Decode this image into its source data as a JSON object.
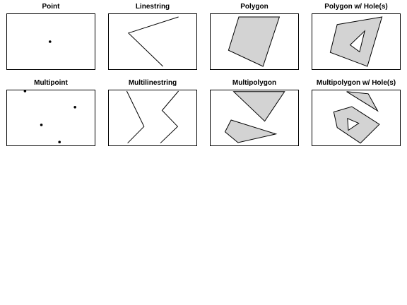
{
  "colors": {
    "fill": "#d3d3d3",
    "stroke": "#000000",
    "frame": "#000000",
    "background": "#ffffff"
  },
  "panels": [
    {
      "title": "Point",
      "kind": "point",
      "geometry": {
        "points": [
          [
            0.49,
            0.5
          ]
        ]
      }
    },
    {
      "title": "Linestring",
      "kind": "linestring",
      "geometry": {
        "lines": [
          [
            [
              0.8,
              0.96
            ],
            [
              0.22,
              0.66
            ],
            [
              0.62,
              0.04
            ]
          ]
        ]
      }
    },
    {
      "title": "Polygon",
      "kind": "polygon",
      "geometry": {
        "polygons": [
          {
            "outer": [
              [
                0.32,
                0.96
              ],
              [
                0.79,
                0.96
              ],
              [
                0.6,
                0.04
              ],
              [
                0.2,
                0.34
              ]
            ],
            "holes": []
          }
        ]
      }
    },
    {
      "title": "Polygon w/ Hole(s)",
      "kind": "polygon",
      "geometry": {
        "polygons": [
          {
            "outer": [
              [
                0.28,
                0.82
              ],
              [
                0.8,
                0.96
              ],
              [
                0.63,
                0.04
              ],
              [
                0.2,
                0.3
              ]
            ],
            "holes": [
              [
                [
                  0.43,
                  0.44
                ],
                [
                  0.6,
                  0.7
                ],
                [
                  0.54,
                  0.31
                ]
              ]
            ]
          }
        ]
      }
    },
    {
      "title": "Multipoint",
      "kind": "point",
      "geometry": {
        "points": [
          [
            0.2,
            1.0
          ],
          [
            0.78,
            0.7
          ],
          [
            0.39,
            0.37
          ],
          [
            0.6,
            0.05
          ]
        ]
      }
    },
    {
      "title": "Multilinestring",
      "kind": "linestring",
      "geometry": {
        "lines": [
          [
            [
              0.2,
              1.0
            ],
            [
              0.4,
              0.34
            ],
            [
              0.21,
              0.03
            ]
          ],
          [
            [
              0.8,
              1.0
            ],
            [
              0.61,
              0.64
            ],
            [
              0.79,
              0.34
            ],
            [
              0.59,
              0.03
            ]
          ]
        ]
      }
    },
    {
      "title": "Multipolygon",
      "kind": "polygon",
      "geometry": {
        "polygons": [
          {
            "outer": [
              [
                0.26,
                0.99
              ],
              [
                0.85,
                0.99
              ],
              [
                0.62,
                0.44
              ]
            ],
            "holes": []
          },
          {
            "outer": [
              [
                0.16,
                0.24
              ],
              [
                0.31,
                0.04
              ],
              [
                0.75,
                0.2
              ],
              [
                0.23,
                0.46
              ]
            ],
            "holes": []
          }
        ]
      }
    },
    {
      "title": "Multipolygon w/ Hole(s)",
      "kind": "polygon",
      "geometry": {
        "polygons": [
          {
            "outer": [
              [
                0.39,
                0.99
              ],
              [
                0.75,
                0.63
              ],
              [
                0.64,
                0.95
              ]
            ],
            "holes": []
          },
          {
            "outer": [
              [
                0.28,
                0.32
              ],
              [
                0.55,
                0.03
              ],
              [
                0.77,
                0.38
              ],
              [
                0.45,
                0.71
              ],
              [
                0.24,
                0.61
              ]
            ],
            "holes": [
              [
                [
                  0.41,
                  0.27
                ],
                [
                  0.53,
                  0.4
                ],
                [
                  0.4,
                  0.49
                ]
              ]
            ]
          }
        ]
      }
    }
  ]
}
